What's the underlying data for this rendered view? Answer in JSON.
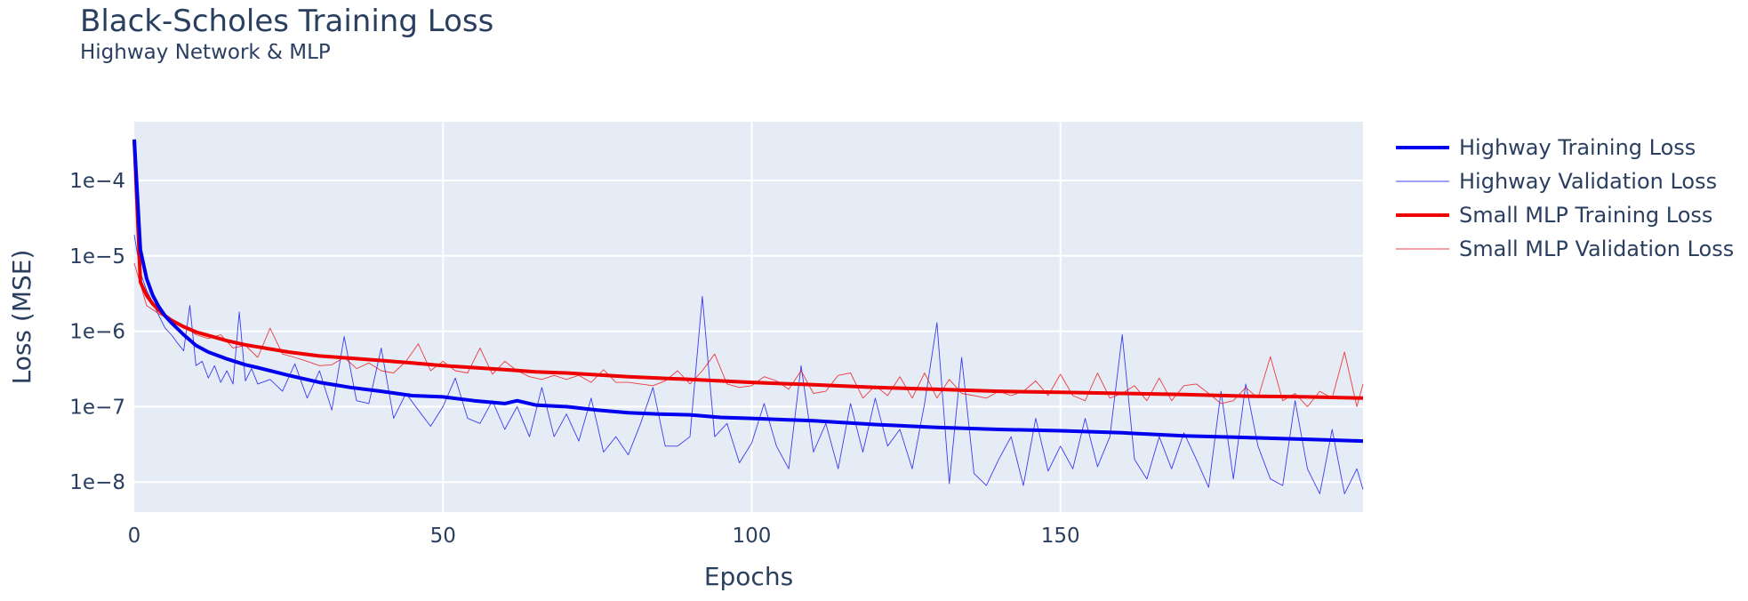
{
  "chart_data": {
    "type": "line",
    "title": "Black-Scholes Training Loss",
    "subtitle": "Highway Network & MLP",
    "xlabel": "Epochs",
    "ylabel": "Loss (MSE)",
    "xlim": [
      0,
      199
    ],
    "ylim": [
      4e-09,
      0.0006
    ],
    "yscale": "log",
    "x_ticks": [
      0,
      50,
      100,
      150
    ],
    "x_tick_labels": [
      "0",
      "50",
      "100",
      "150"
    ],
    "y_ticks": [
      1e-08,
      1e-07,
      1e-06,
      1e-05,
      0.0001
    ],
    "y_tick_labels": [
      "1e−8",
      "1e−7",
      "1e−6",
      "1e−5",
      "1e−4"
    ],
    "grid": true,
    "plot_background": "#e5ecf6",
    "legend_position": "right",
    "series": [
      {
        "name": "Highway Training Loss",
        "color": "#0000ee",
        "line_width": 4,
        "x": [
          0,
          1,
          2,
          3,
          4,
          5,
          6,
          8,
          10,
          12,
          15,
          18,
          20,
          25,
          30,
          35,
          40,
          45,
          50,
          55,
          60,
          62,
          65,
          70,
          75,
          80,
          85,
          90,
          95,
          100,
          110,
          120,
          130,
          140,
          150,
          160,
          170,
          180,
          190,
          199
        ],
        "y": [
          0.00035,
          1.2e-05,
          5e-06,
          3e-06,
          2.1e-06,
          1.6e-06,
          1.3e-06,
          9e-07,
          6.5e-07,
          5.3e-07,
          4.3e-07,
          3.6e-07,
          3.3e-07,
          2.6e-07,
          2.1e-07,
          1.8e-07,
          1.6e-07,
          1.4e-07,
          1.35e-07,
          1.2e-07,
          1.1e-07,
          1.2e-07,
          1.05e-07,
          1e-07,
          9e-08,
          8.3e-08,
          8e-08,
          7.8e-08,
          7.2e-08,
          7e-08,
          6.5e-08,
          5.8e-08,
          5.3e-08,
          5e-08,
          4.8e-08,
          4.5e-08,
          4.1e-08,
          3.9e-08,
          3.7e-08,
          3.5e-08
        ]
      },
      {
        "name": "Highway Validation Loss",
        "color": "#0000ee",
        "line_width": 1,
        "x": [
          0,
          1,
          2,
          3,
          4,
          5,
          6,
          7,
          8,
          9,
          10,
          11,
          12,
          13,
          14,
          15,
          16,
          17,
          18,
          19,
          20,
          22,
          24,
          26,
          28,
          30,
          32,
          34,
          36,
          38,
          40,
          42,
          44,
          46,
          48,
          50,
          52,
          54,
          56,
          58,
          60,
          62,
          64,
          66,
          68,
          70,
          72,
          74,
          76,
          78,
          80,
          82,
          84,
          86,
          88,
          90,
          92,
          94,
          96,
          98,
          100,
          102,
          104,
          106,
          108,
          110,
          112,
          114,
          116,
          118,
          120,
          122,
          124,
          126,
          128,
          130,
          132,
          134,
          136,
          138,
          140,
          142,
          144,
          146,
          148,
          150,
          152,
          154,
          156,
          158,
          160,
          162,
          164,
          166,
          168,
          170,
          172,
          174,
          176,
          178,
          180,
          182,
          184,
          186,
          188,
          190,
          192,
          194,
          196,
          198,
          199
        ],
        "y": [
          1.9e-05,
          6e-06,
          3.5e-06,
          2.4e-06,
          1.6e-06,
          1.1e-06,
          9e-07,
          7e-07,
          5.5e-07,
          2.2e-06,
          3.5e-07,
          4e-07,
          2.4e-07,
          3.5e-07,
          2.1e-07,
          3e-07,
          2e-07,
          1.8e-06,
          2.2e-07,
          3.2e-07,
          2e-07,
          2.3e-07,
          1.6e-07,
          3.7e-07,
          1.3e-07,
          3e-07,
          9e-08,
          8.5e-07,
          1.2e-07,
          1.1e-07,
          6e-07,
          7e-08,
          1.5e-07,
          9e-08,
          5.5e-08,
          1e-07,
          2.4e-07,
          7e-08,
          6e-08,
          1.2e-07,
          5e-08,
          1e-07,
          4e-08,
          1.8e-07,
          4e-08,
          8e-08,
          3.5e-08,
          1.3e-07,
          2.5e-08,
          4e-08,
          2.3e-08,
          6e-08,
          1.8e-07,
          3e-08,
          3e-08,
          4e-08,
          2.9e-06,
          4e-08,
          6e-08,
          1.8e-08,
          3.3e-08,
          1.1e-07,
          3e-08,
          1.5e-08,
          3.5e-07,
          2.5e-08,
          6e-08,
          1.5e-08,
          1.1e-07,
          2.5e-08,
          1.3e-07,
          3e-08,
          5e-08,
          1.5e-08,
          1.1e-07,
          1.3e-06,
          9.5e-09,
          4.5e-07,
          1.3e-08,
          9e-09,
          2e-08,
          4e-08,
          9e-09,
          7e-08,
          1.4e-08,
          3e-08,
          1.5e-08,
          7e-08,
          1.6e-08,
          4e-08,
          9e-07,
          2e-08,
          1.1e-08,
          4e-08,
          1.5e-08,
          4.5e-08,
          2e-08,
          8.5e-09,
          1.6e-07,
          1.1e-08,
          2e-07,
          3e-08,
          1.1e-08,
          9e-09,
          1.2e-07,
          1.5e-08,
          7e-09,
          5e-08,
          7e-09,
          1.5e-08,
          8e-09
        ]
      },
      {
        "name": "Small MLP Training Loss",
        "color": "#ee0000",
        "line_width": 4,
        "x": [
          0,
          1,
          2,
          3,
          4,
          5,
          6,
          8,
          10,
          12,
          15,
          18,
          20,
          25,
          30,
          35,
          40,
          45,
          50,
          55,
          60,
          65,
          70,
          80,
          90,
          100,
          110,
          120,
          130,
          140,
          150,
          160,
          170,
          180,
          190,
          199
        ],
        "y": [
          0.00035,
          4.5e-06,
          3e-06,
          2.3e-06,
          1.9e-06,
          1.6e-06,
          1.4e-06,
          1.15e-06,
          9.8e-07,
          8.8e-07,
          7.5e-07,
          6.6e-07,
          6.2e-07,
          5.3e-07,
          4.7e-07,
          4.4e-07,
          4.1e-07,
          3.8e-07,
          3.5e-07,
          3.3e-07,
          3.1e-07,
          2.9e-07,
          2.8e-07,
          2.5e-07,
          2.3e-07,
          2.1e-07,
          1.95e-07,
          1.8e-07,
          1.7e-07,
          1.6e-07,
          1.55e-07,
          1.5e-07,
          1.45e-07,
          1.38e-07,
          1.35e-07,
          1.3e-07
        ]
      },
      {
        "name": "Small MLP Validation Loss",
        "color": "#ee0000",
        "line_width": 1,
        "x": [
          0,
          2,
          4,
          6,
          8,
          10,
          12,
          14,
          16,
          18,
          20,
          22,
          24,
          26,
          28,
          30,
          32,
          34,
          36,
          38,
          40,
          42,
          44,
          46,
          48,
          50,
          52,
          54,
          56,
          58,
          60,
          62,
          64,
          66,
          68,
          70,
          72,
          74,
          76,
          78,
          80,
          82,
          84,
          86,
          88,
          90,
          92,
          94,
          96,
          98,
          100,
          102,
          104,
          106,
          108,
          110,
          112,
          114,
          116,
          118,
          120,
          122,
          124,
          126,
          128,
          130,
          132,
          134,
          136,
          138,
          140,
          142,
          144,
          146,
          148,
          150,
          152,
          154,
          156,
          158,
          160,
          162,
          164,
          166,
          168,
          170,
          172,
          174,
          176,
          178,
          180,
          182,
          184,
          186,
          188,
          190,
          192,
          194,
          196,
          198,
          199
        ],
        "y": [
          8e-06,
          2.2e-06,
          1.7e-06,
          1.4e-06,
          1.2e-06,
          9e-07,
          8e-07,
          9e-07,
          6e-07,
          6.5e-07,
          4.5e-07,
          1.1e-06,
          5e-07,
          4.5e-07,
          4e-07,
          3.5e-07,
          3.6e-07,
          4.5e-07,
          3.2e-07,
          3.8e-07,
          3e-07,
          2.8e-07,
          4e-07,
          6.8e-07,
          3e-07,
          4e-07,
          3e-07,
          2.8e-07,
          6e-07,
          2.7e-07,
          4e-07,
          3e-07,
          2.5e-07,
          2.3e-07,
          2.6e-07,
          2.3e-07,
          2.6e-07,
          2.1e-07,
          3.1e-07,
          2.1e-07,
          2.1e-07,
          2e-07,
          1.9e-07,
          2.2e-07,
          3e-07,
          2e-07,
          3e-07,
          5e-07,
          2e-07,
          1.8e-07,
          1.9e-07,
          2.5e-07,
          2.2e-07,
          1.7e-07,
          3e-07,
          1.5e-07,
          1.6e-07,
          2.6e-07,
          2.8e-07,
          1.3e-07,
          1.9e-07,
          1.4e-07,
          2.5e-07,
          1.3e-07,
          2.8e-07,
          1.3e-07,
          2.3e-07,
          1.5e-07,
          1.4e-07,
          1.3e-07,
          1.6e-07,
          1.4e-07,
          1.6e-07,
          2.2e-07,
          1.4e-07,
          2.7e-07,
          1.4e-07,
          1.2e-07,
          2.8e-07,
          1.3e-07,
          1.5e-07,
          1.9e-07,
          1.2e-07,
          2.4e-07,
          1.2e-07,
          1.9e-07,
          2e-07,
          1.5e-07,
          1.1e-07,
          1.2e-07,
          1.8e-07,
          1.3e-07,
          4.6e-07,
          1.2e-07,
          1.5e-07,
          1e-07,
          1.6e-07,
          1.3e-07,
          5.3e-07,
          1e-07,
          2e-07
        ]
      }
    ]
  }
}
